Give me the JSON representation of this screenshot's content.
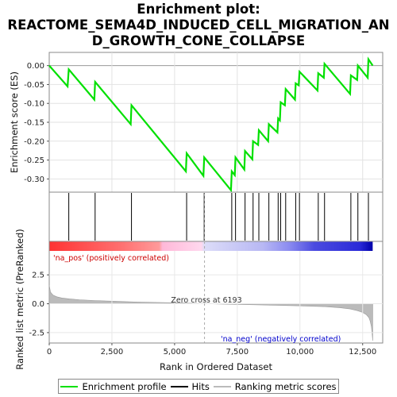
{
  "title_line1": "Enrichment plot:",
  "title_line2": "REACTOME_SEMA4D_INDUCED_CELL_MIGRATION_AN",
  "title_line3": "D_GROWTH_CONE_COLLAPSE",
  "colors": {
    "es_line": "#00e000",
    "hits": "#000000",
    "metric": "#bbbbbb",
    "pos_text": "#cc0000",
    "neg_text": "#0000cc"
  },
  "chart_data": {
    "type": "line",
    "es_panel": {
      "ylabel": "Enrichment score (ES)",
      "ylim": [
        -0.335,
        0.035
      ],
      "yticks": [
        "0.00",
        "-0.05",
        "-0.10",
        "-0.15",
        "-0.20",
        "-0.25",
        "-0.30"
      ],
      "ytick_values": [
        0.0,
        -0.05,
        -0.1,
        -0.15,
        -0.2,
        -0.25,
        -0.3
      ],
      "profile_x": [
        0,
        730,
        780,
        1800,
        1830,
        3250,
        3280,
        5450,
        5480,
        6150,
        6180,
        7250,
        7280,
        7400,
        7430,
        7780,
        7810,
        8100,
        8130,
        8330,
        8360,
        8730,
        8760,
        9100,
        9130,
        9200,
        9230,
        9400,
        9430,
        9800,
        9830,
        9950,
        9980,
        10700,
        10730,
        10950,
        10980,
        12000,
        12030,
        12280,
        12310,
        12700,
        12730,
        12900
      ],
      "profile_y": [
        0.0,
        -0.055,
        -0.01,
        -0.09,
        -0.043,
        -0.155,
        -0.105,
        -0.28,
        -0.232,
        -0.292,
        -0.243,
        -0.33,
        -0.28,
        -0.29,
        -0.243,
        -0.275,
        -0.226,
        -0.248,
        -0.2,
        -0.21,
        -0.171,
        -0.2,
        -0.155,
        -0.177,
        -0.14,
        -0.145,
        -0.097,
        -0.105,
        -0.062,
        -0.09,
        -0.047,
        -0.052,
        -0.016,
        -0.066,
        -0.02,
        -0.032,
        0.005,
        -0.075,
        -0.026,
        -0.038,
        0.0,
        -0.032,
        0.017,
        0.0
      ]
    },
    "hits": [
      780,
      1830,
      3280,
      5480,
      6180,
      7280,
      7430,
      7810,
      8130,
      8360,
      8760,
      9130,
      9230,
      9430,
      9830,
      9980,
      10730,
      10980,
      12030,
      12310,
      12730
    ],
    "rank_panel": {
      "ylabel": "Ranked list metric (PreRanked)",
      "ylim": [
        -3.4,
        5.4
      ],
      "yticks": [
        "2.5",
        "0.0",
        "-2.5"
      ],
      "ytick_values": [
        2.5,
        0.0,
        -2.5
      ],
      "xlabel": "Rank in Ordered Dataset",
      "xlim": [
        0,
        13300
      ],
      "xticks": [
        "0",
        "2,500",
        "5,000",
        "7,500",
        "10,000",
        "12,500"
      ],
      "xtick_values": [
        0,
        2500,
        5000,
        7500,
        10000,
        12500
      ],
      "zero_cross": 6193,
      "zero_cross_label": "Zero cross at 6193",
      "pos_label": "'na_pos' (positively correlated)",
      "neg_label": "'na_neg' (negatively correlated)",
      "metric_x": [
        0,
        50,
        150,
        300,
        500,
        800,
        1200,
        1800,
        2500,
        3500,
        4500,
        5500,
        6193,
        7000,
        8000,
        9000,
        10000,
        11000,
        11600,
        12000,
        12300,
        12500,
        12650,
        12750,
        12800,
        12850,
        12880,
        12900
      ],
      "metric_y": [
        1.6,
        1.0,
        0.75,
        0.6,
        0.5,
        0.42,
        0.35,
        0.28,
        0.22,
        0.15,
        0.1,
        0.05,
        0.0,
        -0.04,
        -0.08,
        -0.13,
        -0.18,
        -0.25,
        -0.35,
        -0.45,
        -0.6,
        -0.75,
        -0.95,
        -1.2,
        -1.5,
        -2.0,
        -2.6,
        -3.2
      ]
    },
    "total_genes": 12900,
    "legend": [
      "Enrichment profile",
      "Hits",
      "Ranking metric scores"
    ]
  }
}
